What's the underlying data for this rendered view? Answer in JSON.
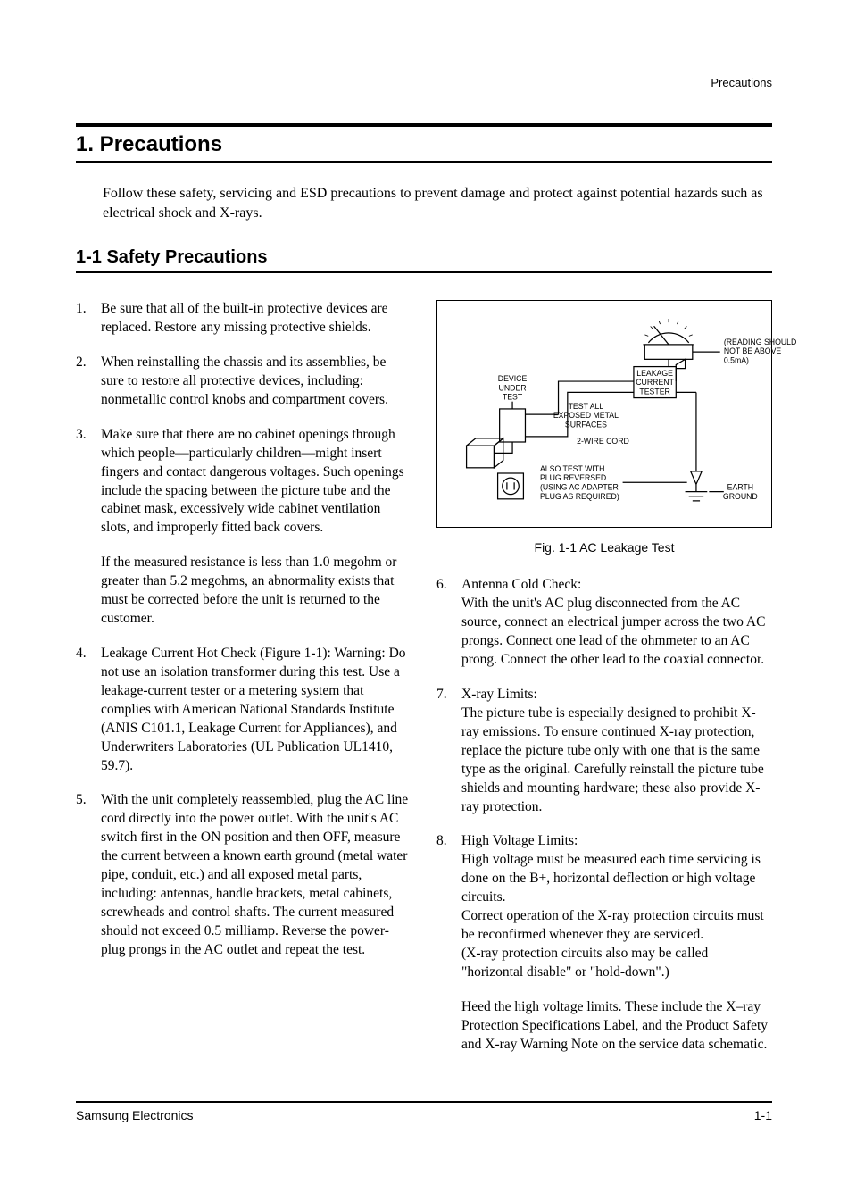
{
  "header": {
    "label": "Precautions"
  },
  "section": {
    "title": "1. Precautions"
  },
  "intro": "Follow these safety, servicing and ESD precautions to prevent damage and protect against potential hazards such as electrical shock and X-rays.",
  "subsection": {
    "title": "1-1 Safety Precautions"
  },
  "left_list": [
    {
      "n": "1.",
      "text": "Be sure that all of the built-in protective devices are replaced.  Restore any missing protective shields."
    },
    {
      "n": "2.",
      "text": "When reinstalling the chassis and its assemblies, be sure to restore all protective devices, including: nonmetallic control knobs and compartment covers."
    },
    {
      "n": "3.",
      "text": "Make sure that there are no cabinet openings through which people—particularly children—might insert fingers and contact dangerous voltages.  Such openings include the spacing between the picture tube and the cabinet mask, excessively wide cabinet ventilation slots, and improperly fitted back covers.",
      "extra": "If the measured resistance is less than 1.0 megohm or greater than 5.2 megohms, an abnormality exists that must be corrected before the unit is returned to the customer."
    },
    {
      "n": "4.",
      "text": "Leakage Current Hot Check (Figure 1-1): Warning: Do not use an isolation transformer during this test.  Use a leakage-current tester or a metering system that complies with American National Standards Institute (ANIS  C101.1, Leakage Current for Appliances), and Underwriters Laboratories (UL Publication UL1410, 59.7)."
    },
    {
      "n": "5.",
      "text": "With the unit completely reassembled, plug the AC line cord directly into the power outlet.  With the unit's AC switch first in the ON position and then OFF, measure the current between a known earth ground (metal water pipe, conduit, etc.) and all exposed metal parts, including: antennas, handle brackets, metal cabinets, screwheads and control shafts.  The current measured should not exceed 0.5 milliamp.  Reverse the power-plug prongs in the AC outlet and repeat the test."
    }
  ],
  "right_list": [
    {
      "n": "6.",
      "text": "Antenna Cold Check:\nWith the unit's AC plug disconnected from the AC source, connect an electrical jumper across the two AC prongs.  Connect one lead of the ohmmeter to an AC prong.  Connect the other lead to the coaxial connector."
    },
    {
      "n": "7.",
      "text": "X-ray Limits:\nThe picture tube is especially designed to prohibit X-ray emissions. To ensure continued X-ray protection, replace the picture tube only with one that is the same type as the original. Carefully reinstall the picture tube shields and mounting hardware; these also provide X-ray protection."
    },
    {
      "n": "8.",
      "text": "High Voltage Limits:\nHigh voltage must be measured each time servicing is done on the B+, horizontal deflection or high voltage circuits.\nCorrect operation of the X-ray protection circuits must  be reconfirmed whenever they are serviced.\n (X-ray protection circuits also may be called \"horizontal disable\" or \"hold-down\".)",
      "extra": "Heed the high voltage limits. These include the X–ray Protection Specifications Label, and the Product Safety and X-ray Warning Note on the service data  schematic."
    }
  ],
  "figure": {
    "caption": "Fig. 1-1 AC Leakage Test",
    "labels": {
      "device": "DEVICE\nUNDER\nTEST",
      "testall": "TEST ALL\nEXPOSED METAL\nSURFACES",
      "cord": "2-WIRE CORD",
      "also": "ALSO TEST WITH\nPLUG REVERSED\n(USING AC ADAPTER\nPLUG AS REQUIRED)",
      "tester": "LEAKAGE\nCURRENT\nTESTER",
      "reading": "(READING SHOULD\nNOT BE ABOVE\n0.5mA)",
      "earth": "EARTH\nGROUND"
    },
    "style": {
      "border_color": "#000000",
      "stroke_width": 1.2,
      "label_fontsize": 8.5,
      "background": "#ffffff"
    }
  },
  "footer": {
    "left": "Samsung Electronics",
    "right": "1-1"
  }
}
